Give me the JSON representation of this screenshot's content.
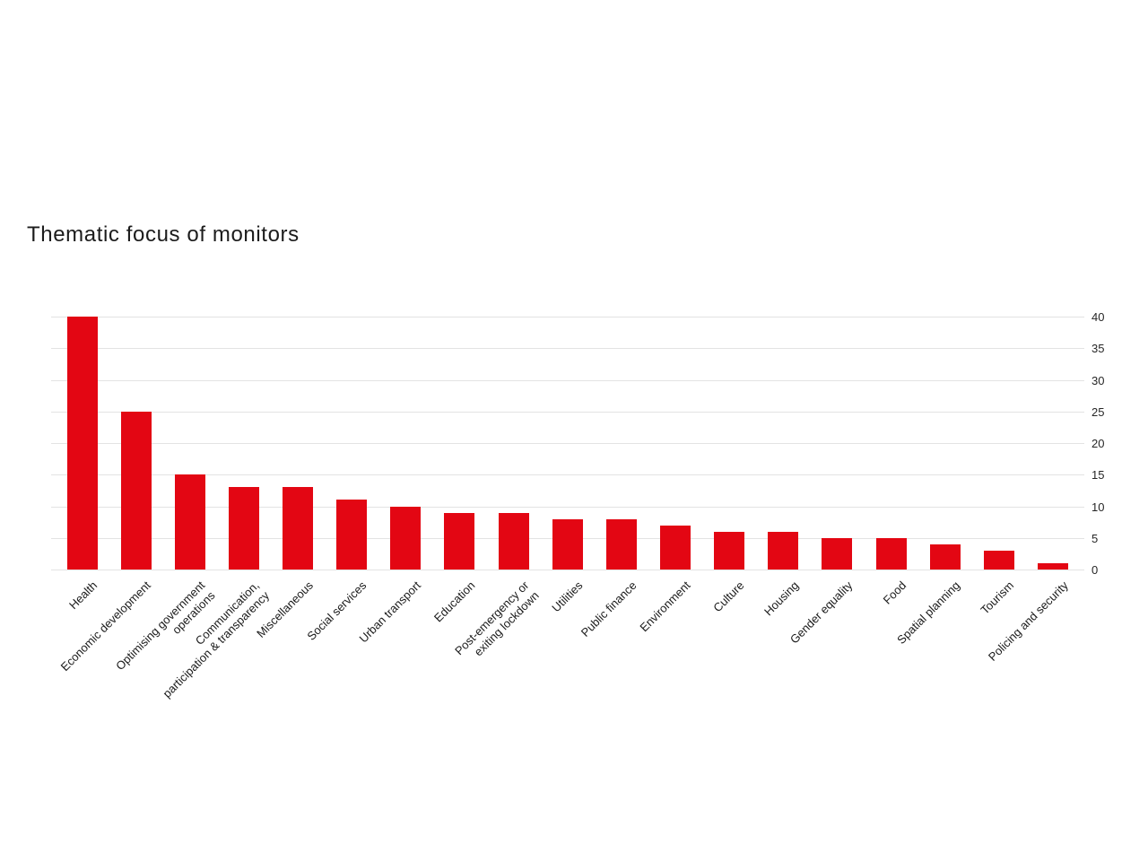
{
  "chart_data": {
    "type": "bar",
    "title": "Thematic focus of monitors",
    "categories": [
      "Health",
      "Economic development",
      "Optimising government\noperations",
      "Communication,\nparticipation & transparency",
      "Miscellaneous",
      "Social services",
      "Urban transport",
      "Education",
      "Post-emergency or\nexiting lockdown",
      "Utilities",
      "Public finance",
      "Environment",
      "Culture",
      "Housing",
      "Gender equality",
      "Food",
      "Spatial planning",
      "Tourism",
      "Policing and security"
    ],
    "values": [
      40,
      25,
      15,
      13,
      13,
      11,
      10,
      9,
      9,
      8,
      8,
      7,
      6,
      6,
      5,
      5,
      4,
      3,
      1
    ],
    "ylim": [
      0,
      40
    ],
    "yticks": [
      0,
      5,
      10,
      15,
      20,
      25,
      30,
      35,
      40
    ],
    "y_axis_side": "right",
    "x_label_rotation_deg": 45,
    "grid": "horizontal",
    "legend": "none",
    "xlabel": "",
    "ylabel": "",
    "colors": {
      "bar": "#e30613",
      "gridline": "#e3e3e3",
      "text": "#1a1a1a",
      "background": "#ffffff"
    }
  }
}
